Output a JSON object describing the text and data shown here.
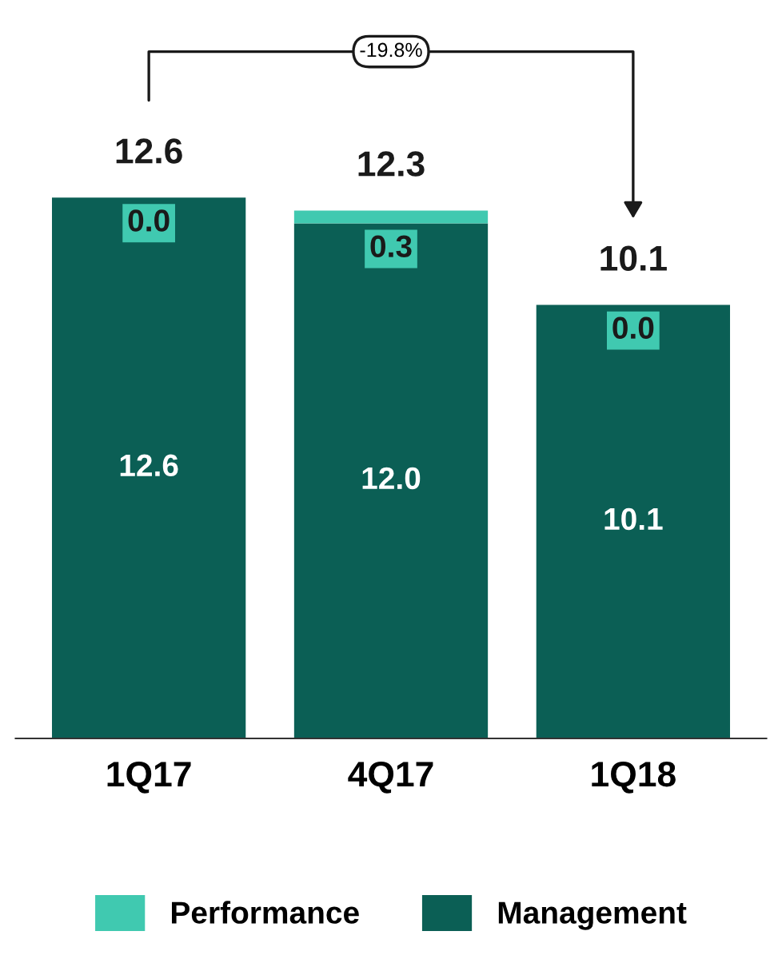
{
  "chart_data": {
    "type": "bar",
    "stacked": true,
    "categories": [
      "1Q17",
      "4Q17",
      "1Q18"
    ],
    "series": [
      {
        "name": "Management",
        "color": "#0b5f55",
        "values": [
          12.6,
          12.0,
          10.1
        ],
        "value_labels": [
          "12.6",
          "12.0",
          "10.1"
        ]
      },
      {
        "name": "Performance",
        "color": "#40c9b0",
        "values": [
          0.0,
          0.3,
          0.0
        ],
        "value_labels": [
          "0.0",
          "0.3",
          "0.0"
        ]
      }
    ],
    "totals": [
      "12.6",
      "12.3",
      "10.1"
    ],
    "annotations": [
      "-19.8%"
    ],
    "legend": "bottom",
    "grid": false,
    "tick_labels": "x"
  }
}
